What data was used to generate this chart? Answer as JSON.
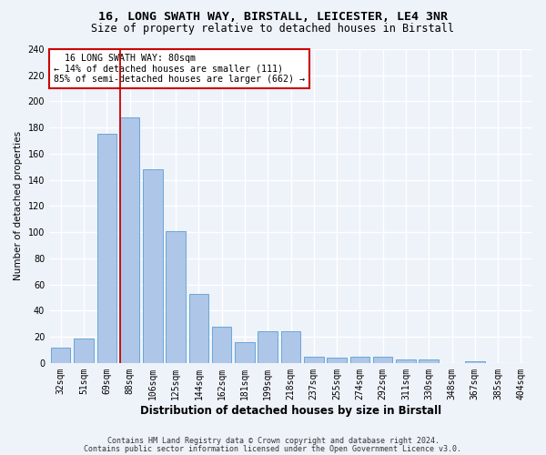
{
  "title1": "16, LONG SWATH WAY, BIRSTALL, LEICESTER, LE4 3NR",
  "title2": "Size of property relative to detached houses in Birstall",
  "xlabel": "Distribution of detached houses by size in Birstall",
  "ylabel": "Number of detached properties",
  "categories": [
    "32sqm",
    "51sqm",
    "69sqm",
    "88sqm",
    "106sqm",
    "125sqm",
    "144sqm",
    "162sqm",
    "181sqm",
    "199sqm",
    "218sqm",
    "237sqm",
    "255sqm",
    "274sqm",
    "292sqm",
    "311sqm",
    "330sqm",
    "348sqm",
    "367sqm",
    "385sqm",
    "404sqm"
  ],
  "values": [
    12,
    19,
    175,
    188,
    148,
    101,
    53,
    28,
    16,
    24,
    24,
    5,
    4,
    5,
    5,
    3,
    3,
    0,
    1,
    0,
    0
  ],
  "bar_color": "#aec6e8",
  "bar_edge_color": "#5a9fd4",
  "vline_color": "#cc0000",
  "vline_index": 3,
  "annotation_text": "  16 LONG SWATH WAY: 80sqm\n← 14% of detached houses are smaller (111)\n85% of semi-detached houses are larger (662) →",
  "annotation_box_color": "#ffffff",
  "annotation_box_edge": "#cc0000",
  "ylim": [
    0,
    240
  ],
  "yticks": [
    0,
    20,
    40,
    60,
    80,
    100,
    120,
    140,
    160,
    180,
    200,
    220,
    240
  ],
  "footer1": "Contains HM Land Registry data © Crown copyright and database right 2024.",
  "footer2": "Contains public sector information licensed under the Open Government Licence v3.0.",
  "bg_color": "#eef2f9",
  "grid_color": "#ffffff",
  "title1_fontsize": 9.5,
  "title2_fontsize": 8.5,
  "xlabel_fontsize": 8.5,
  "ylabel_fontsize": 7.5,
  "tick_fontsize": 7,
  "footer_fontsize": 6.0
}
